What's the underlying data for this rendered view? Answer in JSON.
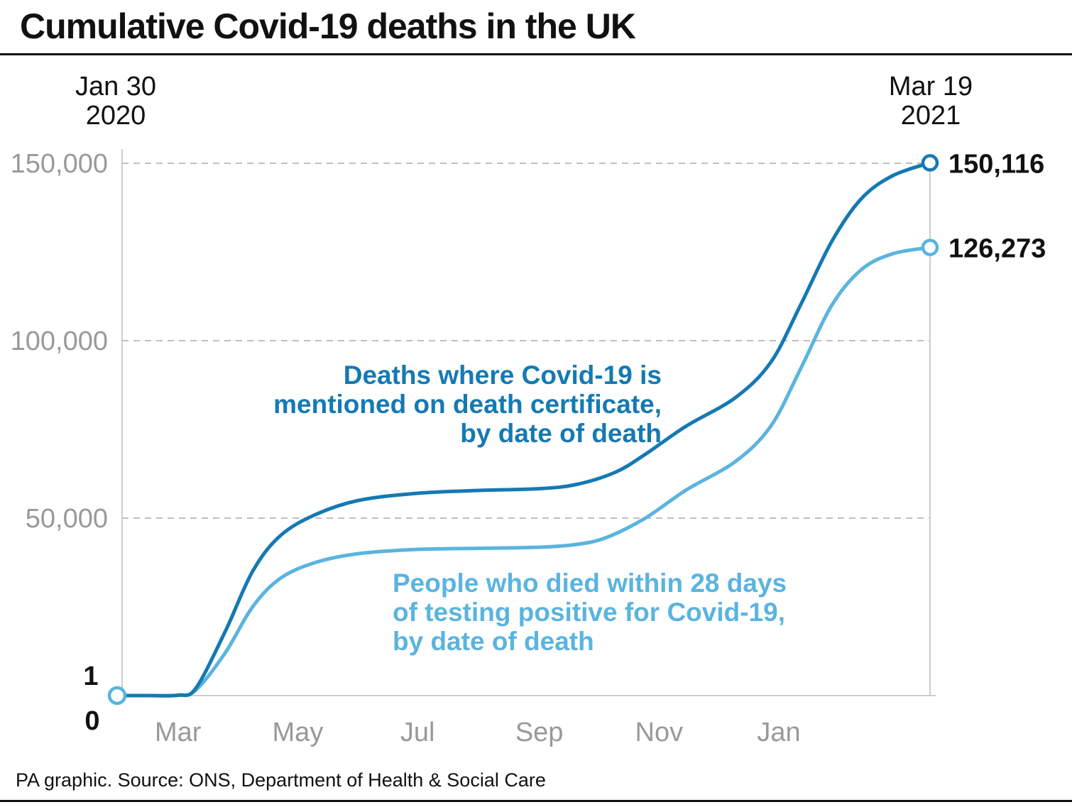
{
  "title": "Cumulative Covid-19 deaths in the UK",
  "source": "PA graphic. Source: ONS, Department of Health & Social Care",
  "colors": {
    "dark_blue": "#1579b3",
    "light_blue": "#5ab4df",
    "grid": "#aaaaaa",
    "axis": "#cccccc"
  },
  "chart_data": {
    "type": "line",
    "start_label": [
      "Jan 30",
      "2020"
    ],
    "end_label": [
      "Mar 19",
      "2021"
    ],
    "start_date": "2020-01-30",
    "end_date": "2021-03-19",
    "ylim": [
      0,
      150000
    ],
    "yticks": [
      50000,
      100000,
      150000
    ],
    "ytick_labels": [
      "50,000",
      "100,000",
      "150,000"
    ],
    "zero_labels": [
      "1",
      "0"
    ],
    "xticks": [
      {
        "date": "2020-03-01",
        "label": "Mar"
      },
      {
        "date": "2020-05-01",
        "label": "May"
      },
      {
        "date": "2020-07-01",
        "label": "Jul"
      },
      {
        "date": "2020-09-01",
        "label": "Sep"
      },
      {
        "date": "2020-11-01",
        "label": "Nov"
      },
      {
        "date": "2021-01-01",
        "label": "Jan"
      }
    ],
    "grid": true,
    "series": [
      {
        "name": "Deaths where Covid-19 is mentioned on death certificate, by date of death",
        "label_lines": [
          "Deaths where Covid-19 is",
          "mentioned on death certificate,",
          "by date of death"
        ],
        "color": "#1579b3",
        "end_label": "150,116",
        "points": [
          [
            "2020-01-30",
            1
          ],
          [
            "2020-02-15",
            1
          ],
          [
            "2020-03-01",
            100
          ],
          [
            "2020-03-10",
            2000
          ],
          [
            "2020-03-25",
            18000
          ],
          [
            "2020-04-08",
            35000
          ],
          [
            "2020-04-22",
            45000
          ],
          [
            "2020-05-10",
            51000
          ],
          [
            "2020-06-01",
            55000
          ],
          [
            "2020-07-01",
            57000
          ],
          [
            "2020-08-01",
            57800
          ],
          [
            "2020-09-01",
            58300
          ],
          [
            "2020-09-20",
            59500
          ],
          [
            "2020-10-10",
            63000
          ],
          [
            "2020-10-25",
            68000
          ],
          [
            "2020-11-15",
            76000
          ],
          [
            "2020-12-10",
            84000
          ],
          [
            "2020-12-28",
            94000
          ],
          [
            "2021-01-12",
            110000
          ],
          [
            "2021-01-28",
            128000
          ],
          [
            "2021-02-12",
            140000
          ],
          [
            "2021-02-28",
            146500
          ],
          [
            "2021-03-19",
            150116
          ]
        ]
      },
      {
        "name": "People who died within 28 days of testing positive for Covid-19, by date of death",
        "label_lines": [
          "People who died within 28 days",
          "of testing positive for Covid-19,",
          "by date of death"
        ],
        "color": "#5ab4df",
        "end_label": "126,273",
        "points": [
          [
            "2020-01-30",
            1
          ],
          [
            "2020-02-15",
            1
          ],
          [
            "2020-03-01",
            100
          ],
          [
            "2020-03-10",
            1500
          ],
          [
            "2020-03-25",
            12000
          ],
          [
            "2020-04-08",
            25000
          ],
          [
            "2020-04-22",
            33000
          ],
          [
            "2020-05-10",
            37500
          ],
          [
            "2020-06-01",
            40000
          ],
          [
            "2020-07-01",
            41200
          ],
          [
            "2020-08-01",
            41500
          ],
          [
            "2020-09-01",
            41800
          ],
          [
            "2020-09-20",
            42600
          ],
          [
            "2020-10-05",
            44500
          ],
          [
            "2020-10-25",
            50000
          ],
          [
            "2020-11-15",
            58000
          ],
          [
            "2020-12-10",
            66000
          ],
          [
            "2020-12-28",
            76000
          ],
          [
            "2021-01-12",
            92000
          ],
          [
            "2021-01-28",
            110000
          ],
          [
            "2021-02-12",
            120000
          ],
          [
            "2021-02-28",
            124500
          ],
          [
            "2021-03-19",
            126273
          ]
        ]
      }
    ]
  }
}
